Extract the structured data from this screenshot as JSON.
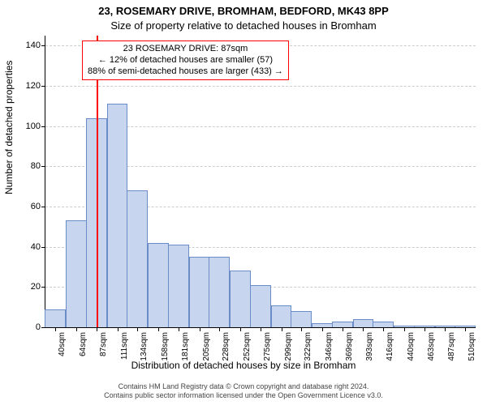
{
  "title": "23, ROSEMARY DRIVE, BROMHAM, BEDFORD, MK43 8PP",
  "subtitle": "Size of property relative to detached houses in Bromham",
  "ylabel": "Number of detached properties",
  "xlabel": "Distribution of detached houses by size in Bromham",
  "footer_line1": "Contains HM Land Registry data © Crown copyright and database right 2024.",
  "footer_line2": "Contains public sector information licensed under the Open Government Licence v3.0.",
  "callout": {
    "line1": "23 ROSEMARY DRIVE: 87sqm",
    "line2": "← 12% of detached houses are smaller (57)",
    "line3": "88% of semi-detached houses are larger (433) →",
    "border_color": "#ff0000"
  },
  "marker": {
    "x_value": 87,
    "color": "#ff0000"
  },
  "chart": {
    "type": "histogram",
    "background_color": "#ffffff",
    "grid_color": "#cccccc",
    "bar_fill": "#c7d5ef",
    "bar_stroke": "#6a8cc7",
    "bar_width_ratio": 1.0,
    "xlim": [
      28.5,
      522
    ],
    "ylim": [
      0,
      145
    ],
    "yticks": [
      0,
      20,
      40,
      60,
      80,
      100,
      120,
      140
    ],
    "xtick_positions": [
      40,
      64,
      87,
      111,
      134,
      158,
      181,
      205,
      228,
      252,
      275,
      299,
      322,
      346,
      369,
      393,
      416,
      440,
      463,
      487,
      510
    ],
    "xtick_labels": [
      "40sqm",
      "64sqm",
      "87sqm",
      "111sqm",
      "134sqm",
      "158sqm",
      "181sqm",
      "205sqm",
      "228sqm",
      "252sqm",
      "275sqm",
      "299sqm",
      "322sqm",
      "346sqm",
      "369sqm",
      "393sqm",
      "416sqm",
      "440sqm",
      "463sqm",
      "487sqm",
      "510sqm"
    ],
    "values": [
      9,
      53,
      104,
      111,
      68,
      42,
      41,
      35,
      35,
      28,
      21,
      11,
      8,
      2,
      3,
      4,
      3,
      1,
      1,
      1,
      1
    ],
    "title_fontsize": 13,
    "subtitle_fontsize": 13,
    "label_fontsize": 12,
    "tick_fontsize": 10
  }
}
